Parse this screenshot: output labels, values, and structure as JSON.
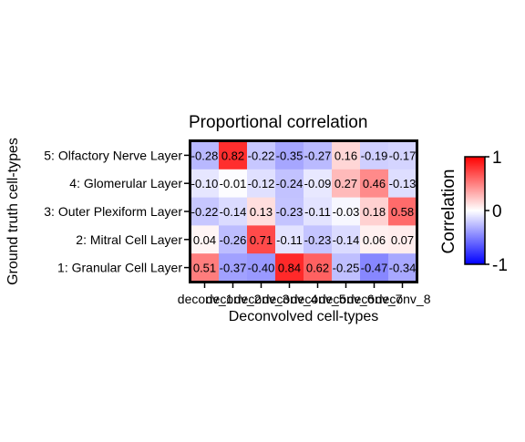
{
  "chart_data": {
    "type": "heatmap",
    "title": "Proportional correlation",
    "xlabel": "Deconvolved cell-types",
    "ylabel": "Ground truth cell-types",
    "x_categories": [
      "deconv_1",
      "deconv_2",
      "deconv_3",
      "deconv_4",
      "deconv_5",
      "deconv_6",
      "deconv_7",
      "deconv_8"
    ],
    "x_tick_labels": [
      "deconv_1",
      "deconv_2",
      "deconv_3",
      "deconv_4",
      "deconv_5",
      "deconv_6",
      "deconv_7",
      "deconv_8"
    ],
    "y_categories": [
      "5: Olfactory Nerve Layer",
      "4: Glomerular Layer",
      "3: Outer Plexiform Layer",
      "2: Mitral Cell Layer",
      "1: Granular Cell Layer"
    ],
    "values": [
      [
        -0.28,
        0.82,
        -0.22,
        -0.35,
        -0.27,
        0.16,
        -0.19,
        -0.17
      ],
      [
        -0.1,
        -0.01,
        -0.12,
        -0.24,
        -0.09,
        0.27,
        0.46,
        -0.13
      ],
      [
        -0.22,
        -0.14,
        0.13,
        -0.23,
        -0.11,
        -0.03,
        0.18,
        0.58
      ],
      [
        0.04,
        -0.26,
        0.71,
        -0.11,
        -0.23,
        -0.14,
        0.06,
        0.07
      ],
      [
        0.51,
        -0.37,
        -0.4,
        0.84,
        0.62,
        -0.25,
        -0.47,
        -0.34
      ]
    ],
    "value_labels": [
      [
        "-0.28",
        "0.82",
        "-0.22",
        "-0.35",
        "-0.27",
        "0.16",
        "-0.19",
        "-0.17"
      ],
      [
        "-0.10",
        "-0.01",
        "-0.12",
        "-0.24",
        "-0.09",
        "0.27",
        "0.46",
        "-0.13"
      ],
      [
        "-0.22",
        "-0.14",
        "0.13",
        "-0.23",
        "-0.11",
        "-0.03",
        "0.18",
        "0.58"
      ],
      [
        "0.04",
        "-0.26",
        "0.71",
        "-0.11",
        "-0.23",
        "-0.14",
        "0.06",
        "0.07"
      ],
      [
        "0.51",
        "-0.37",
        "-0.40",
        "0.84",
        "0.62",
        "-0.25",
        "-0.47",
        "-0.34"
      ]
    ],
    "colorscale": {
      "low": "#0000FF",
      "mid": "#FFFFFF",
      "high": "#FF0000",
      "range": [
        -1,
        1
      ]
    },
    "legend": {
      "title": "Correlation",
      "ticks": [
        "1",
        "0",
        "-1"
      ],
      "placement": "right"
    }
  }
}
